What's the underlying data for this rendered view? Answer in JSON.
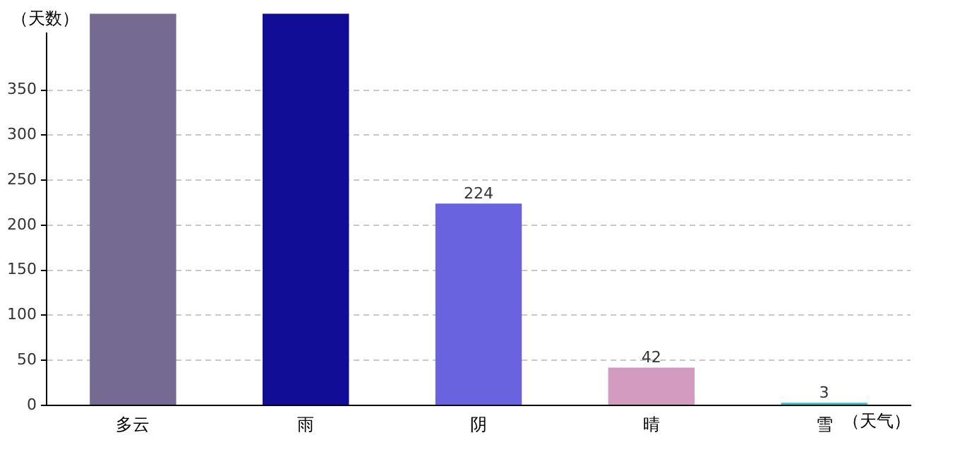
{
  "chart_data": {
    "type": "bar",
    "xlabel": "（天气）",
    "ylabel": "（天数）",
    "categories": [
      "多云",
      "雨",
      "阴",
      "晴",
      "雪"
    ],
    "values": [
      435,
      435,
      224,
      42,
      3
    ],
    "colors": [
      "#756a92",
      "#110d96",
      "#6a63e0",
      "#d39bc0",
      "#2cc6c6"
    ],
    "value_labels": [
      null,
      null,
      "224",
      "42",
      "3"
    ],
    "ylim": [
      0,
      435
    ],
    "yticks": [
      0,
      50,
      100,
      150,
      200,
      250,
      300,
      350
    ],
    "grid": "y"
  }
}
